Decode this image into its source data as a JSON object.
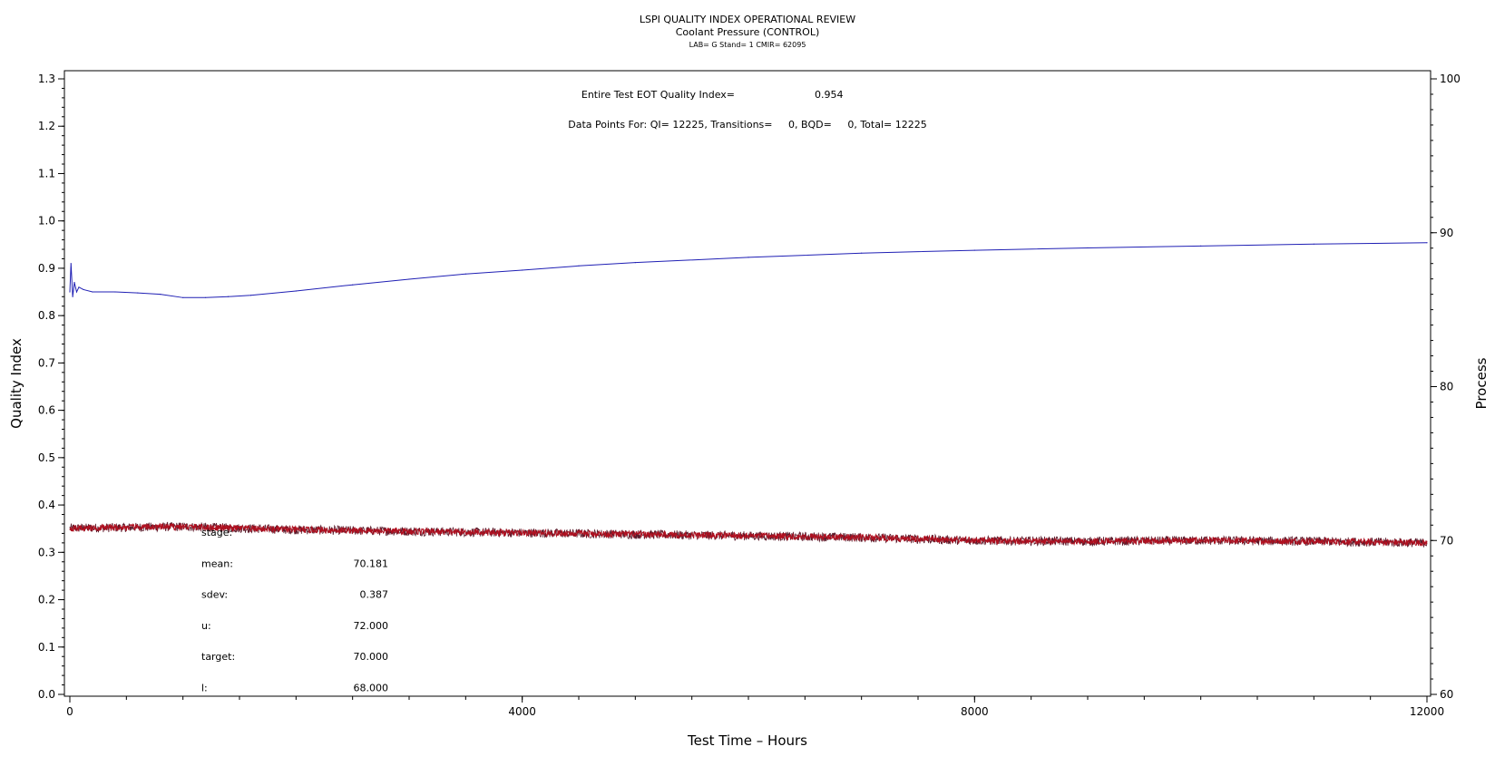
{
  "chart_data": {
    "type": "line",
    "title": "LSPI QUALITY INDEX OPERATIONAL REVIEW",
    "subtitle": "Coolant Pressure (CONTROL)",
    "subsubtitle": "LAB= G Stand= 1 CMIR= 62095",
    "xlabel": "Test Time – Hours",
    "ylabel_left": "Quality Index",
    "ylabel_right": "Process",
    "xlim": [
      0,
      12000
    ],
    "ylim_left": [
      0,
      1.3
    ],
    "ylim_right": [
      60,
      100
    ],
    "x_ticks": [
      "0",
      "4000",
      "8000",
      "12000"
    ],
    "y_left_ticks": [
      "0.0",
      "0.1",
      "0.2",
      "0.3",
      "0.4",
      "0.5",
      "0.6",
      "0.7",
      "0.8",
      "0.9",
      "1.0",
      "1.1",
      "1.2",
      "1.3"
    ],
    "y_right_ticks": [
      "60",
      "70",
      "80",
      "90",
      "100"
    ],
    "annotations": {
      "eot_label": "Entire Test EOT Quality Index=",
      "eot_value": "0.954",
      "points_label": "Data Points For: QI= 12225, Transitions=     0, BQD=     0, Total= 12225"
    },
    "stats": [
      {
        "label": "stage:",
        "value": ""
      },
      {
        "label": "mean:",
        "value": "70.181"
      },
      {
        "label": "sdev:",
        "value": "0.387"
      },
      {
        "label": "u:",
        "value": "72.000"
      },
      {
        "label": "target:",
        "value": "70.000"
      },
      {
        "label": "l:",
        "value": "68.000"
      }
    ],
    "series": [
      {
        "axis": "left",
        "color": "#1f1fb4",
        "x": [
          0,
          10,
          25,
          40,
          60,
          80,
          120,
          200,
          400,
          600,
          800,
          1000,
          1200,
          1400,
          1600,
          2000,
          2500,
          3000,
          3500,
          4000,
          4500,
          5000,
          6000,
          7000,
          8000,
          9000,
          10000,
          11000,
          12000
        ],
        "values": [
          0.85,
          0.91,
          0.84,
          0.87,
          0.85,
          0.86,
          0.855,
          0.85,
          0.85,
          0.848,
          0.845,
          0.838,
          0.838,
          0.84,
          0.843,
          0.852,
          0.865,
          0.877,
          0.888,
          0.896,
          0.905,
          0.912,
          0.923,
          0.932,
          0.938,
          0.943,
          0.947,
          0.951,
          0.954
        ]
      },
      {
        "axis": "right",
        "color": "#b01020",
        "noise_color": "#5a1a2a",
        "x": [
          0,
          1000,
          2000,
          3000,
          4000,
          5000,
          6000,
          7000,
          8000,
          9000,
          10000,
          11000,
          12000
        ],
        "values": [
          70.8,
          70.9,
          70.7,
          70.6,
          70.5,
          70.4,
          70.3,
          70.2,
          70.0,
          69.95,
          70.0,
          69.95,
          69.85
        ],
        "noise_amplitude": 0.3
      }
    ]
  }
}
